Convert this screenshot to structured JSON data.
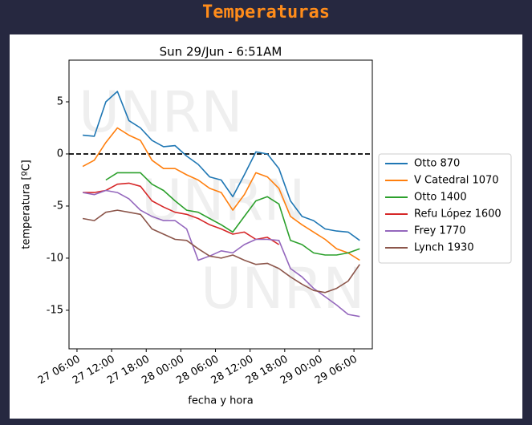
{
  "header": {
    "title": "Temperaturas"
  },
  "chart_data": {
    "type": "line",
    "title": "Sun 29/Jun - 6:51AM",
    "x_label": "fecha y hora",
    "y_label": "temperatura [ºC]",
    "watermark": [
      "UNRN",
      "UNRN",
      "UNRN"
    ],
    "reference_line": 0,
    "legend": "right-outside",
    "x": [
      "27 07:00",
      "27 09:00",
      "27 11:00",
      "27 13:00",
      "27 15:00",
      "27 17:00",
      "27 19:00",
      "27 21:00",
      "27 23:00",
      "28 01:00",
      "28 03:00",
      "28 05:00",
      "28 07:00",
      "28 09:00",
      "28 11:00",
      "28 13:00",
      "28 15:00",
      "28 17:00",
      "28 19:00",
      "28 21:00",
      "28 23:00",
      "29 01:00",
      "29 03:00",
      "29 05:00",
      "29 07:00"
    ],
    "xlim": [
      "27 04:37",
      "29 09:11"
    ],
    "xticks": [
      "27 06:00",
      "27 12:00",
      "27 18:00",
      "28 00:00",
      "28 06:00",
      "28 12:00",
      "28 18:00",
      "29 00:00",
      "29 06:00"
    ],
    "ylim": [
      -18.7,
      9.0
    ],
    "yticks": [
      -15,
      -10,
      -5,
      0,
      5
    ],
    "series": [
      {
        "name": "Otto 870",
        "color": "#1f77b4",
        "values": [
          1.8,
          1.7,
          5,
          6,
          3.2,
          2.5,
          1.3,
          0.7,
          0.8,
          -0.2,
          -1,
          -2.2,
          -2.5,
          -4.1,
          -2,
          0.2,
          0,
          -1.4,
          -4.5,
          -6,
          -6.4,
          -7.2,
          -7.4,
          -7.5,
          -8.3
        ]
      },
      {
        "name": "V Catedral 1070",
        "color": "#ff7f0e",
        "values": [
          -1.2,
          -0.6,
          1.1,
          2.5,
          1.8,
          1.3,
          -0.6,
          -1.4,
          -1.4,
          -2,
          -2.5,
          -3.3,
          -3.7,
          -5.4,
          -3.9,
          -1.8,
          -2.2,
          -3.3,
          -6,
          -6.8,
          -7.5,
          -8.2,
          -9.1,
          -9.5,
          -10.2
        ]
      },
      {
        "name": "Otto 1400",
        "color": "#2ca02c",
        "values": [
          null,
          null,
          -2.5,
          -1.8,
          -1.8,
          -1.8,
          -2.9,
          -3.5,
          -4.5,
          -5.4,
          -5.6,
          -6.2,
          -6.8,
          -7.5,
          -6,
          -4.5,
          -4.1,
          -4.8,
          -8.3,
          -8.7,
          -9.5,
          -9.7,
          -9.7,
          -9.5,
          -9.1
        ]
      },
      {
        "name": "Refu López 1600",
        "color": "#d62728",
        "values": [
          -3.7,
          -3.7,
          -3.5,
          -2.9,
          -2.8,
          -3.1,
          -4.5,
          -5.1,
          -5.6,
          -5.8,
          -6.2,
          -6.8,
          -7.2,
          -7.7,
          -7.5,
          -8.2,
          -8,
          -8.7,
          null,
          null,
          null,
          null,
          null,
          null,
          null
        ]
      },
      {
        "name": "Frey 1770",
        "color": "#9467bd",
        "values": [
          -3.7,
          -3.9,
          -3.5,
          -3.7,
          -4.3,
          -5.4,
          -6,
          -6.4,
          -6.4,
          -7.2,
          -10.2,
          -9.8,
          -9.3,
          -9.5,
          -8.7,
          -8.2,
          -8.2,
          -8.3,
          -11,
          -11.8,
          -12.9,
          -13.7,
          -14.5,
          -15.4,
          -15.6
        ]
      },
      {
        "name": "Lynch 1930",
        "color": "#8c564b",
        "values": [
          -6.2,
          -6.4,
          -5.6,
          -5.4,
          -5.6,
          -5.8,
          -7.2,
          -7.7,
          -8.2,
          -8.3,
          -9.1,
          -9.8,
          -10,
          -9.7,
          -10.2,
          -10.6,
          -10.5,
          -11,
          -11.8,
          -12.5,
          -13.1,
          -13.3,
          -12.9,
          -12.2,
          -10.6
        ]
      }
    ]
  }
}
